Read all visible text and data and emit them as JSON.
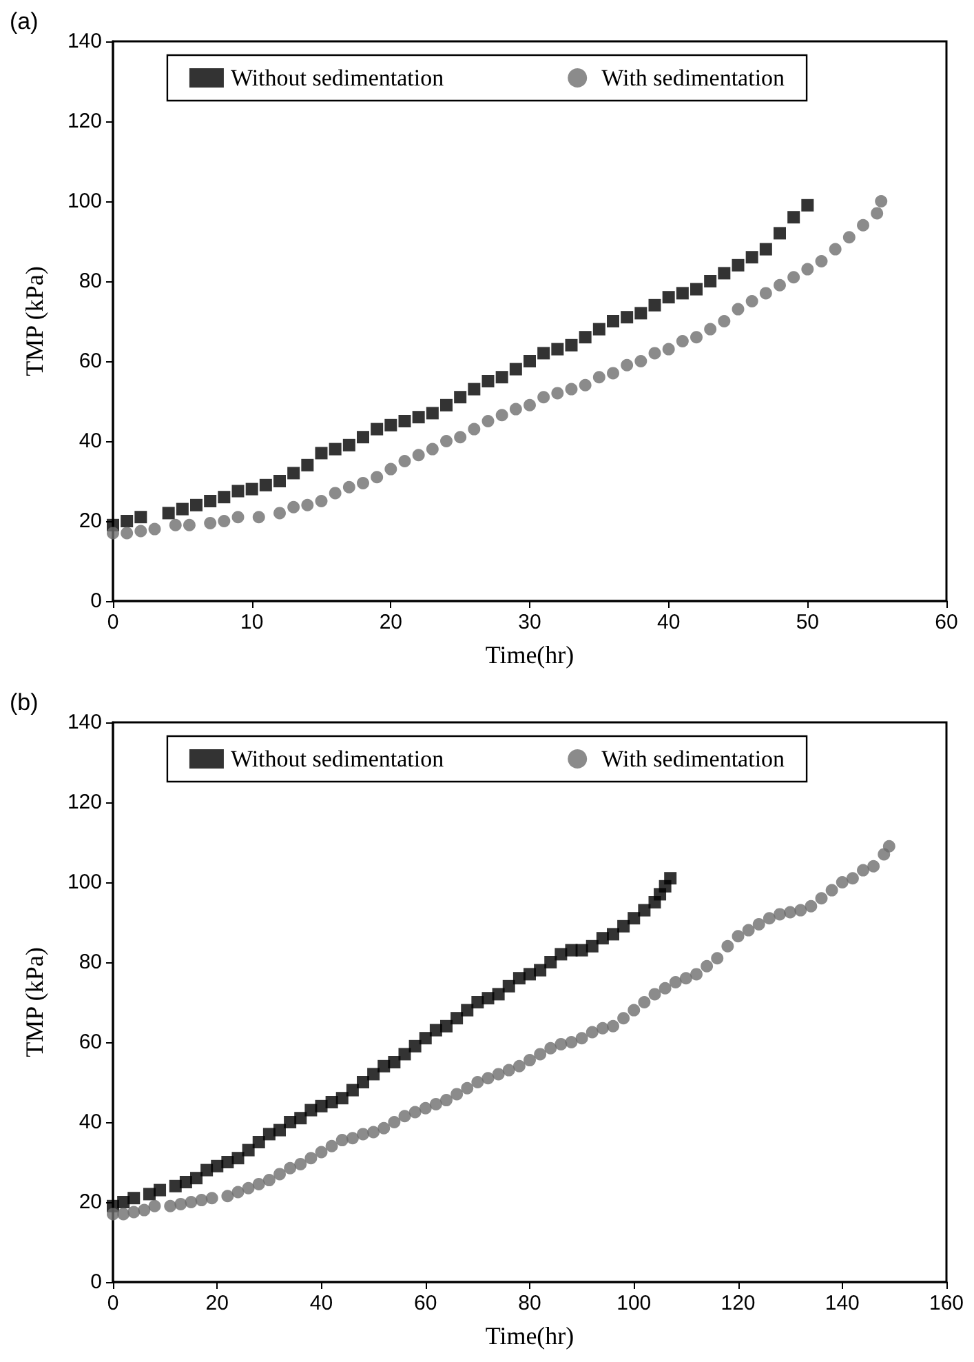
{
  "chart_data": [
    {
      "type": "scatter",
      "title": "(a)",
      "xlabel": "Time(hr)",
      "ylabel": "TMP (kPa)",
      "xlim": [
        0,
        60
      ],
      "xticks": [
        0,
        10,
        20,
        30,
        40,
        50,
        60
      ],
      "ylim": [
        0,
        140
      ],
      "yticks": [
        0,
        20,
        40,
        60,
        80,
        100,
        120,
        140
      ],
      "grid": false,
      "legend": "top",
      "series": [
        {
          "name": "Without sedimentation",
          "color": "#000000",
          "marker": "square",
          "x": [
            0,
            1,
            2,
            4,
            5,
            6,
            7,
            8,
            9,
            10,
            11,
            12,
            13,
            14,
            15,
            16,
            17,
            18,
            19,
            20,
            21,
            22,
            23,
            24,
            25,
            26,
            27,
            28,
            29,
            30,
            31,
            32,
            33,
            34,
            35,
            36,
            37,
            38,
            39,
            40,
            41,
            42,
            43,
            44,
            45,
            46,
            47,
            48,
            49,
            50
          ],
          "values": [
            19,
            20,
            21,
            22,
            23,
            24,
            25,
            26,
            27.5,
            28,
            29,
            30,
            32,
            34,
            37,
            38,
            39,
            41,
            43,
            44,
            45,
            46,
            47,
            49,
            51,
            53,
            55,
            56,
            58,
            60,
            62,
            63,
            64,
            66,
            68,
            70,
            71,
            72,
            74,
            76,
            77,
            78,
            80,
            82,
            84,
            86,
            88,
            92,
            96,
            99
          ]
        },
        {
          "name": "With sedimentation",
          "color": "#6e6e6e",
          "marker": "circle",
          "x": [
            0,
            1,
            2,
            3,
            4.5,
            5.5,
            7,
            8,
            9,
            10.5,
            12,
            13,
            14,
            15,
            16,
            17,
            18,
            19,
            20,
            21,
            22,
            23,
            24,
            25,
            26,
            27,
            28,
            29,
            30,
            31,
            32,
            33,
            34,
            35,
            36,
            37,
            38,
            39,
            40,
            41,
            42,
            43,
            44,
            45,
            46,
            47,
            48,
            49,
            50,
            51,
            52,
            53,
            54,
            55,
            55.3
          ],
          "values": [
            17,
            17,
            17.5,
            18,
            19,
            19,
            19.5,
            20,
            21,
            21,
            22,
            23.5,
            24,
            25,
            27,
            28.5,
            29.5,
            31,
            33,
            35,
            36.5,
            38,
            40,
            41,
            43,
            45,
            46.5,
            48,
            49,
            51,
            52,
            53,
            54,
            56,
            57,
            59,
            60,
            62,
            63,
            65,
            66,
            68,
            70,
            73,
            75,
            77,
            79,
            81,
            83,
            85,
            88,
            91,
            94,
            97,
            100
          ]
        }
      ]
    },
    {
      "type": "scatter",
      "title": "(b)",
      "xlabel": "Time(hr)",
      "ylabel": "TMP (kPa)",
      "xlim": [
        0,
        160
      ],
      "xticks": [
        0,
        20,
        40,
        60,
        80,
        100,
        120,
        140,
        160
      ],
      "ylim": [
        0,
        140
      ],
      "yticks": [
        0,
        20,
        40,
        60,
        80,
        100,
        120,
        140
      ],
      "grid": false,
      "legend": "top",
      "series": [
        {
          "name": "Without sedimentation",
          "color": "#000000",
          "marker": "square",
          "x": [
            0,
            2,
            4,
            7,
            9,
            12,
            14,
            16,
            18,
            20,
            22,
            24,
            26,
            28,
            30,
            32,
            34,
            36,
            38,
            40,
            42,
            44,
            46,
            48,
            50,
            52,
            54,
            56,
            58,
            60,
            62,
            64,
            66,
            68,
            70,
            72,
            74,
            76,
            78,
            80,
            82,
            84,
            86,
            88,
            90,
            92,
            94,
            96,
            98,
            100,
            102,
            104,
            105,
            106,
            107
          ],
          "values": [
            19,
            20,
            21,
            22,
            23,
            24,
            25,
            26,
            28,
            29,
            30,
            31,
            33,
            35,
            37,
            38,
            40,
            41,
            43,
            44,
            45,
            46,
            48,
            50,
            52,
            54,
            55,
            57,
            59,
            61,
            63,
            64,
            66,
            68,
            70,
            71,
            72,
            74,
            76,
            77,
            78,
            80,
            82,
            83,
            83,
            84,
            86,
            87,
            89,
            91,
            93,
            95,
            97,
            99,
            101
          ]
        },
        {
          "name": "With sedimentation",
          "color": "#6e6e6e",
          "marker": "circle",
          "x": [
            0,
            2,
            4,
            6,
            8,
            11,
            13,
            15,
            17,
            19,
            22,
            24,
            26,
            28,
            30,
            32,
            34,
            36,
            38,
            40,
            42,
            44,
            46,
            48,
            50,
            52,
            54,
            56,
            58,
            60,
            62,
            64,
            66,
            68,
            70,
            72,
            74,
            76,
            78,
            80,
            82,
            84,
            86,
            88,
            90,
            92,
            94,
            96,
            98,
            100,
            102,
            104,
            106,
            108,
            110,
            112,
            114,
            116,
            118,
            120,
            122,
            124,
            126,
            128,
            130,
            132,
            134,
            136,
            138,
            140,
            142,
            144,
            146,
            148,
            149
          ],
          "values": [
            17,
            17,
            17.5,
            18,
            19,
            19,
            19.5,
            20,
            20.5,
            21,
            21.5,
            22.5,
            23.5,
            24.5,
            25.5,
            27,
            28.5,
            29.5,
            31,
            32.5,
            34,
            35.5,
            36,
            37,
            37.5,
            38.5,
            40,
            41.5,
            42.5,
            43.5,
            44.5,
            45.5,
            47,
            48.5,
            50,
            51,
            52,
            53,
            54,
            55.5,
            57,
            58.5,
            59.5,
            60,
            61,
            62.5,
            63.5,
            64,
            66,
            68,
            70,
            72,
            73.5,
            75,
            76,
            77,
            79,
            81,
            84,
            86.5,
            88,
            89.5,
            91,
            92,
            92.5,
            93,
            94,
            96,
            98,
            100,
            101,
            103,
            104,
            107,
            109
          ]
        }
      ]
    }
  ]
}
